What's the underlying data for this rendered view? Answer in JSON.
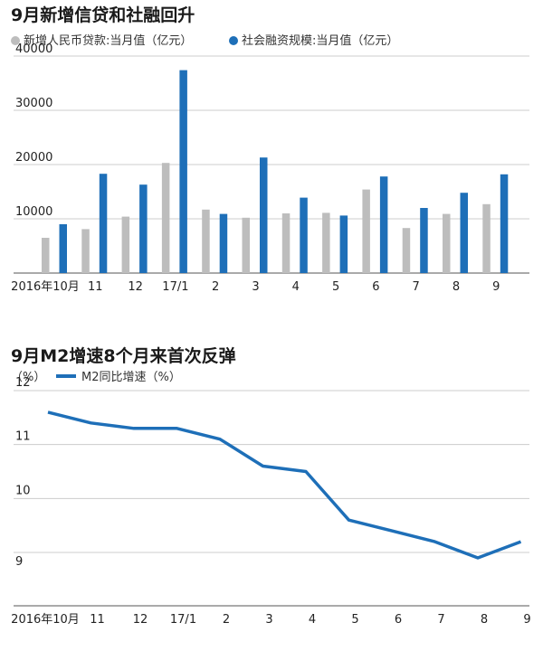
{
  "colors": {
    "gray": "#bdbdbd",
    "blue": "#1e6fb8",
    "grid": "#cccccc",
    "axis": "#555555"
  },
  "chart_data": [
    {
      "type": "bar",
      "title": "9月新增信贷和社融回升",
      "categories": [
        "2016年10月",
        "11",
        "12",
        "17/1",
        "2",
        "3",
        "4",
        "5",
        "6",
        "7",
        "8",
        "9"
      ],
      "series": [
        {
          "name": "新增人民币贷款:当月值（亿元）",
          "color": "#bdbdbd",
          "values": [
            6500,
            8100,
            10400,
            20300,
            11700,
            10200,
            11000,
            11100,
            15400,
            8300,
            10900,
            12700
          ]
        },
        {
          "name": "社会融资规模:当月值（亿元）",
          "color": "#1e6fb8",
          "values": [
            9000,
            18300,
            16300,
            37400,
            10900,
            21300,
            13900,
            10600,
            17800,
            12000,
            14800,
            18200
          ]
        }
      ],
      "yticks": [
        10000,
        20000,
        30000,
        40000
      ],
      "ylim": [
        0,
        40000
      ],
      "grid": true
    },
    {
      "type": "line",
      "title": "9月M2增速8个月来首次反弹",
      "yunit": "（%）",
      "categories": [
        "2016年10月",
        "11",
        "12",
        "17/1",
        "2",
        "3",
        "4",
        "5",
        "6",
        "7",
        "8",
        "9"
      ],
      "series": [
        {
          "name": "M2同比增速（%）",
          "color": "#1e6fb8",
          "values": [
            11.6,
            11.4,
            11.3,
            11.3,
            11.1,
            10.6,
            10.5,
            9.6,
            9.4,
            9.2,
            8.9,
            9.2
          ]
        }
      ],
      "yticks": [
        9,
        10,
        11,
        12
      ],
      "ylim": [
        8,
        12.3
      ],
      "grid": true
    }
  ]
}
